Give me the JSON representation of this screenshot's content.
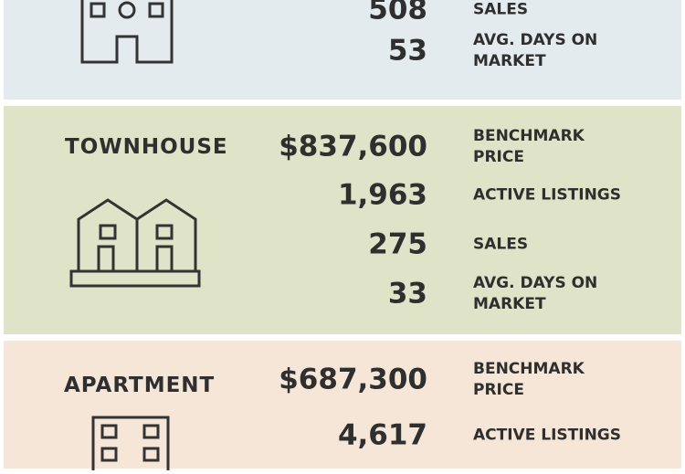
{
  "sections": {
    "detached": {
      "icon": "house-icon",
      "background": "#e4ebee",
      "stats": [
        {
          "value": "508",
          "label": "SALES"
        },
        {
          "value": "53",
          "label": "AVG. DAYS ON\nMARKET"
        }
      ]
    },
    "townhouse": {
      "title": "TOWNHOUSE",
      "icon": "townhouse-icon",
      "background": "#dfe3c8",
      "stats": [
        {
          "value": "$837,600",
          "label": "BENCHMARK\nPRICE"
        },
        {
          "value": "1,963",
          "label": "ACTIVE LISTINGS"
        },
        {
          "value": "275",
          "label": "SALES"
        },
        {
          "value": "33",
          "label": "AVG. DAYS ON\nMARKET"
        }
      ]
    },
    "apartment": {
      "title": "APARTMENT",
      "icon": "apartment-icon",
      "background": "#f5e6d8",
      "stats": [
        {
          "value": "$687,300",
          "label": "BENCHMARK\nPRICE"
        },
        {
          "value": "4,617",
          "label": "ACTIVE LISTINGS"
        }
      ]
    }
  }
}
